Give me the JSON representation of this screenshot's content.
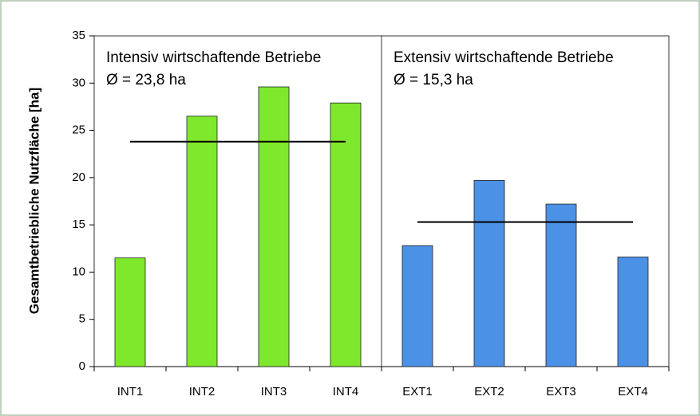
{
  "chart_data": {
    "type": "bar",
    "ylabel": "Gesamtbetriebliche Nutzfläche [ha]",
    "ylim": [
      0,
      35
    ],
    "yticks": [
      0,
      5,
      10,
      15,
      20,
      25,
      30,
      35
    ],
    "groups": [
      {
        "title": "Intensiv wirtschaftende Betriebe",
        "mean_label": "Ø = 23,8 ha",
        "mean": 23.8,
        "color": "#7ee82c",
        "categories": [
          "INT1",
          "INT2",
          "INT3",
          "INT4"
        ],
        "values": [
          11.5,
          26.5,
          29.6,
          27.9
        ]
      },
      {
        "title": "Extensiv wirtschaftende Betriebe",
        "mean_label": "Ø = 15,3 ha",
        "mean": 15.3,
        "color": "#4b91e6",
        "categories": [
          "EXT1",
          "EXT2",
          "EXT3",
          "EXT4"
        ],
        "values": [
          12.8,
          19.7,
          17.2,
          11.6
        ]
      }
    ]
  }
}
